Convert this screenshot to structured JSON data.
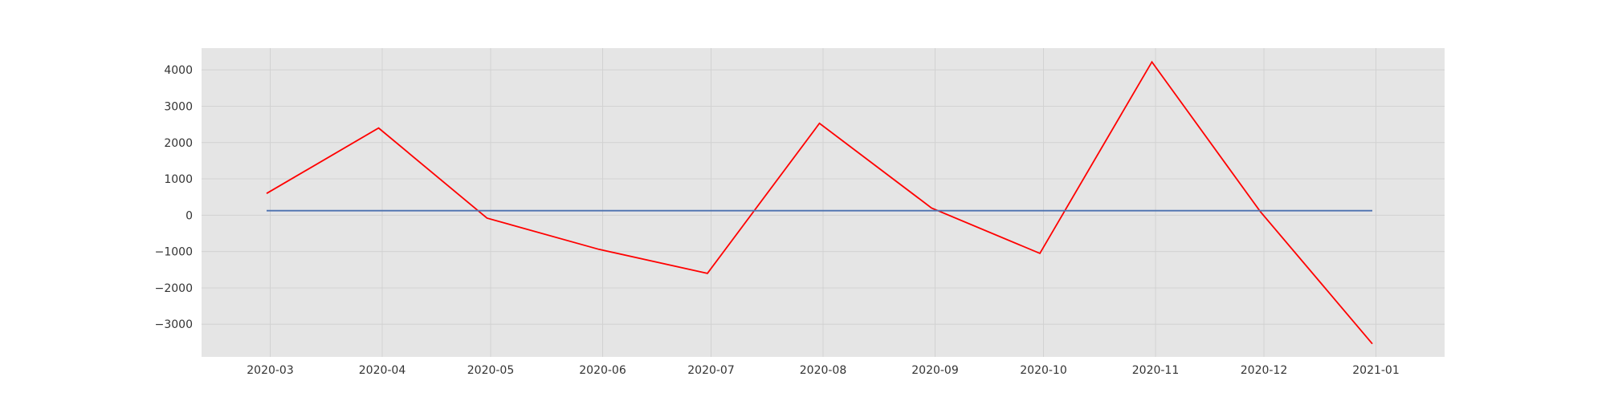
{
  "chart_data": {
    "type": "line",
    "title": "",
    "xlabel": "",
    "ylabel": "",
    "grid": true,
    "background_color": "#e5e5e5",
    "x_tick_labels": [
      "2020-03",
      "2020-04",
      "2020-05",
      "2020-06",
      "2020-07",
      "2020-08",
      "2020-09",
      "2020-10",
      "2020-11",
      "2020-12",
      "2021-01"
    ],
    "x_ticks": [
      "2020-03-01",
      "2020-04-01",
      "2020-05-01",
      "2020-06-01",
      "2020-07-01",
      "2020-08-01",
      "2020-09-01",
      "2020-10-01",
      "2020-11-01",
      "2020-12-01",
      "2021-01-01"
    ],
    "xlim": [
      "2020-02-11",
      "2021-01-20"
    ],
    "y_ticks": [
      -3000,
      -2000,
      -1000,
      0,
      1000,
      2000,
      3000,
      4000
    ],
    "y_tick_labels": [
      "−3000",
      "−2000",
      "−1000",
      "0",
      "1000",
      "2000",
      "3000",
      "4000"
    ],
    "ylim": [
      -3900,
      4600
    ],
    "series": [
      {
        "color": "#ff0000",
        "x": [
          "2020-02-29",
          "2020-03-31",
          "2020-04-30",
          "2020-05-31",
          "2020-06-30",
          "2020-07-31",
          "2020-08-31",
          "2020-09-30",
          "2020-10-31",
          "2020-11-30",
          "2020-12-31"
        ],
        "values": [
          600,
          2400,
          -80,
          -940,
          -1600,
          2530,
          200,
          -1050,
          4220,
          100,
          -3540
        ]
      },
      {
        "color": "#4c72b0",
        "x": [
          "2020-02-29",
          "2020-12-31"
        ],
        "values": [
          125,
          125
        ]
      }
    ]
  }
}
